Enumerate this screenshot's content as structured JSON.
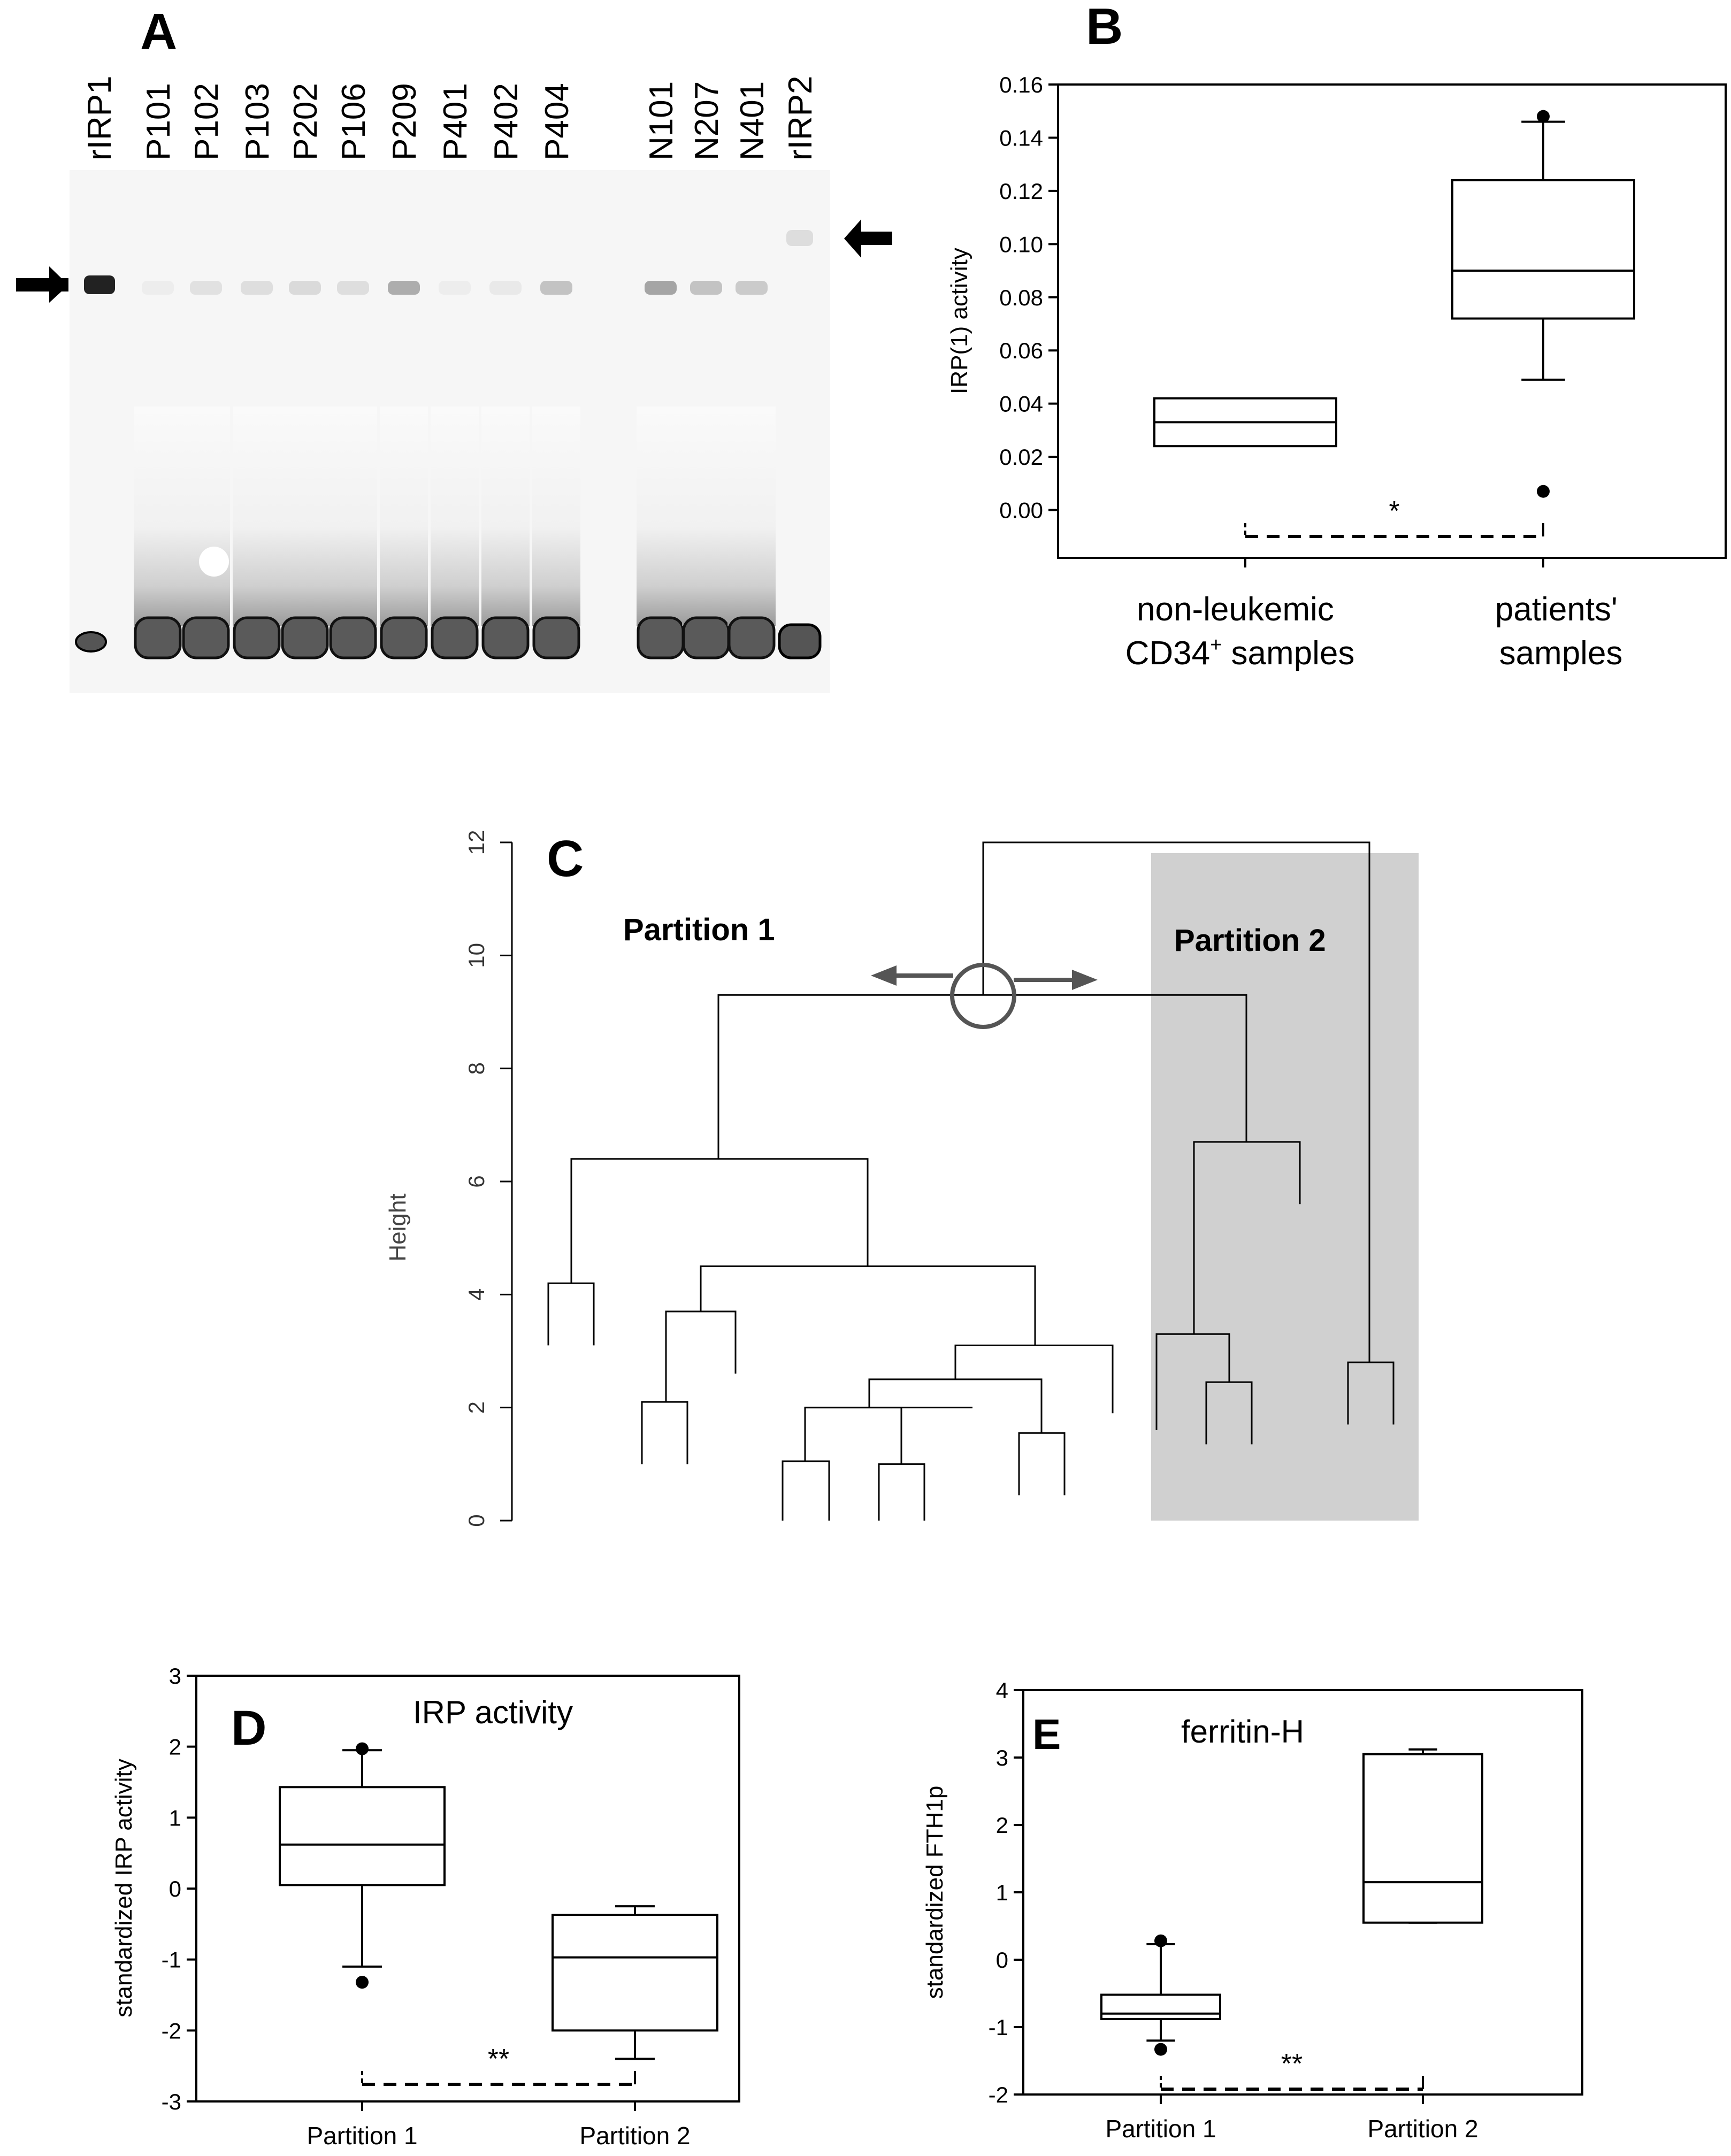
{
  "panels": {
    "A": "A",
    "B": "B",
    "C": "C",
    "D": "D",
    "E": "E"
  },
  "gel": {
    "lanes": [
      "rIRP1",
      "P101",
      "P102",
      "P103",
      "P202",
      "P106",
      "P209",
      "P401",
      "P402",
      "P404",
      "N101",
      "N207",
      "N401",
      "rIRP2"
    ]
  },
  "chart_data": [
    {
      "panel": "B",
      "type": "box",
      "title": "",
      "ylabel": "IRP(1) activity",
      "ylim": [
        -0.018,
        0.16
      ],
      "yticks": [
        "0.00",
        "0.02",
        "0.04",
        "0.06",
        "0.08",
        "0.10",
        "0.12",
        "0.14",
        "0.16"
      ],
      "categories": [
        "non-leukemic CD34+ samples",
        "patients' samples"
      ],
      "category_lines": [
        [
          "non-leukemic",
          "CD34",
          "+",
          " samples"
        ],
        [
          "patients'",
          "samples"
        ]
      ],
      "boxes": [
        {
          "q1": 0.024,
          "median": 0.033,
          "q3": 0.042
        },
        {
          "q1": 0.072,
          "median": 0.09,
          "q3": 0.124,
          "whisker_low": 0.049,
          "whisker_high": 0.146,
          "outliers": [
            0.148,
            0.007
          ]
        }
      ],
      "significance": "*"
    },
    {
      "panel": "C",
      "type": "dendrogram",
      "ylabel": "Height",
      "ylim": [
        0,
        12
      ],
      "yticks": [
        "0",
        "2",
        "4",
        "6",
        "8",
        "10",
        "12"
      ],
      "partition_labels": [
        "Partition 1",
        "Partition 2"
      ]
    },
    {
      "panel": "D",
      "type": "box",
      "title": "IRP activity",
      "ylabel": "standardized IRP activity",
      "ylim": [
        -3,
        3
      ],
      "yticks": [
        "-3",
        "-2",
        "-1",
        "0",
        "1",
        "2",
        "3"
      ],
      "categories": [
        "Partition 1",
        "Partition 2"
      ],
      "boxes": [
        {
          "q1": 0.05,
          "median": 0.62,
          "q3": 1.43,
          "whisker_low": -1.1,
          "whisker_high": 1.95,
          "outliers": [
            1.97,
            -1.32
          ]
        },
        {
          "q1": -2.0,
          "median": -0.97,
          "q3": -0.37,
          "whisker_low": -2.4,
          "whisker_high": -0.25,
          "outliers": []
        }
      ],
      "significance": "**"
    },
    {
      "panel": "E",
      "type": "box",
      "title": "ferritin-H",
      "ylabel": "standardized FTH1p",
      "ylim": [
        -2,
        4
      ],
      "yticks": [
        "-2",
        "-1",
        "0",
        "1",
        "2",
        "3",
        "4"
      ],
      "categories": [
        "Partition 1",
        "Partition 2"
      ],
      "boxes": [
        {
          "q1": -0.88,
          "median": -0.8,
          "q3": -0.52,
          "whisker_low": -1.2,
          "whisker_high": 0.23,
          "outliers": [
            0.28,
            -1.33
          ]
        },
        {
          "q1": 0.55,
          "median": 1.15,
          "q3": 3.05,
          "whisker_low": 0.55,
          "whisker_high": 3.12,
          "outliers": []
        }
      ],
      "significance": "**"
    }
  ]
}
